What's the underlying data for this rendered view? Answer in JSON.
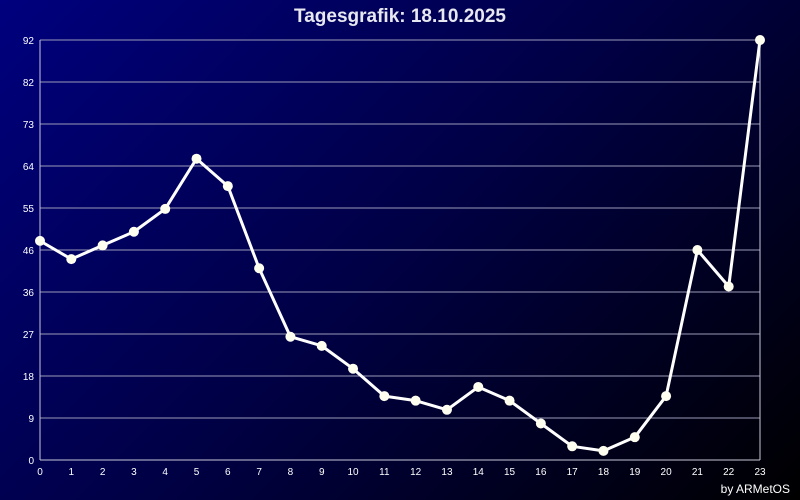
{
  "title": "Tagesgrafik: 18.10.2025",
  "credit": "by ARMetOS",
  "colors": {
    "background_start": "#00007e",
    "background_end": "#000000",
    "line": "#ffffff",
    "marker": "#fffff0",
    "grid": "#9a9ab8",
    "text": "#ffffff"
  },
  "chart_data": {
    "type": "line",
    "title": "Tagesgrafik: 18.10.2025",
    "xlabel": "",
    "ylabel": "",
    "grid": true,
    "x": [
      0,
      1,
      2,
      3,
      4,
      5,
      6,
      7,
      8,
      9,
      10,
      11,
      12,
      13,
      14,
      15,
      16,
      17,
      18,
      19,
      20,
      21,
      22,
      23
    ],
    "x_ticks": [
      "0",
      "1",
      "2",
      "3",
      "4",
      "5",
      "6",
      "7",
      "8",
      "9",
      "10",
      "11",
      "12",
      "13",
      "14",
      "15",
      "16",
      "17",
      "18",
      "19",
      "20",
      "21",
      "22",
      "23"
    ],
    "y_ticks": [
      "0",
      "9",
      "18",
      "27",
      "36",
      "46",
      "55",
      "64",
      "73",
      "82",
      "92"
    ],
    "ylim": [
      0,
      92
    ],
    "series": [
      {
        "values": [
          48,
          44,
          47,
          50,
          55,
          66,
          60,
          42,
          27,
          25,
          20,
          14,
          13,
          11,
          16,
          13,
          8,
          3,
          2,
          5,
          14,
          46,
          38,
          92
        ]
      }
    ]
  }
}
